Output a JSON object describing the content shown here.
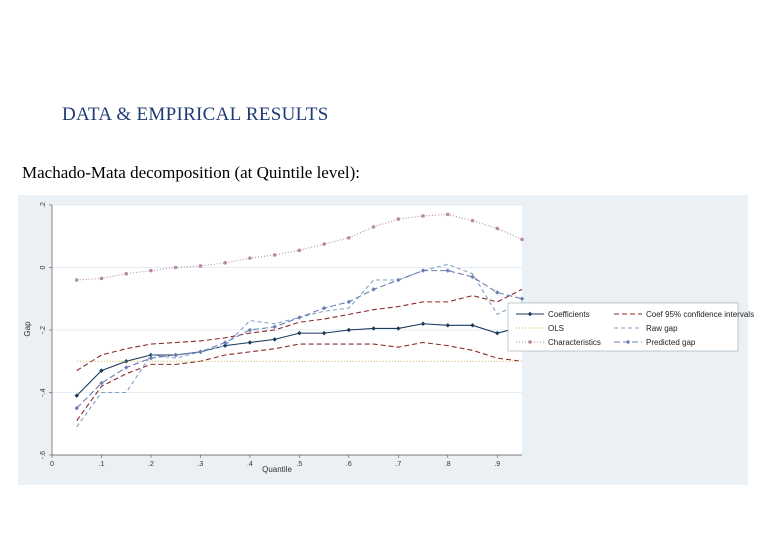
{
  "slide": {
    "heading": "DATA & EMPIRICAL RESULTS",
    "subheading": "Machado-Mata decomposition (at Quintile level):"
  },
  "chart_data": {
    "type": "line",
    "xlabel": "Quantile",
    "ylabel": "Gap",
    "xlim": [
      0,
      0.95
    ],
    "ylim": [
      -0.6,
      0.2
    ],
    "x_ticks": [
      0,
      0.1,
      0.2,
      0.3,
      0.4,
      0.5,
      0.6,
      0.7,
      0.8,
      0.9
    ],
    "x_tick_labels": [
      "0",
      ".1",
      ".2",
      ".3",
      ".4",
      ".5",
      ".6",
      ".7",
      ".8",
      ".9"
    ],
    "y_ticks": [
      -0.6,
      -0.4,
      -0.2,
      0,
      0.2
    ],
    "y_tick_labels": [
      "-.6",
      "-.4",
      "-.2",
      "0",
      ".2"
    ],
    "grid": "horizontal",
    "legend_position": "right",
    "x": [
      0.05,
      0.1,
      0.15,
      0.2,
      0.25,
      0.3,
      0.35,
      0.4,
      0.45,
      0.5,
      0.55,
      0.6,
      0.65,
      0.7,
      0.75,
      0.8,
      0.85,
      0.9,
      0.95
    ],
    "series": [
      {
        "name": "Coefficients",
        "color": "#1a3a5c",
        "dash": "",
        "marker": "diamond",
        "values": [
          -0.41,
          -0.33,
          -0.3,
          -0.28,
          -0.28,
          -0.27,
          -0.25,
          -0.24,
          -0.23,
          -0.21,
          -0.21,
          -0.2,
          -0.195,
          -0.195,
          -0.18,
          -0.185,
          -0.185,
          -0.21,
          -0.19
        ]
      },
      {
        "name": "Coef 95% confidence intervals",
        "color": "#8b2a2a",
        "dash": "5,3",
        "marker": "none",
        "values": [
          -0.33,
          -0.28,
          -0.26,
          -0.245,
          -0.24,
          -0.235,
          -0.225,
          -0.21,
          -0.2,
          -0.175,
          -0.165,
          -0.15,
          -0.135,
          -0.125,
          -0.11,
          -0.11,
          -0.09,
          -0.11,
          -0.07
        ]
      },
      {
        "name": "Coef 95% confidence intervals",
        "color": "#8b2a2a",
        "dash": "5,3",
        "marker": "none",
        "values": [
          -0.49,
          -0.38,
          -0.34,
          -0.31,
          -0.31,
          -0.3,
          -0.28,
          -0.27,
          -0.26,
          -0.245,
          -0.245,
          -0.245,
          -0.245,
          -0.255,
          -0.24,
          -0.25,
          -0.265,
          -0.29,
          -0.3
        ]
      },
      {
        "name": "OLS",
        "color": "#c9b04a",
        "dash": "1,2",
        "marker": "none",
        "values": [
          -0.3,
          -0.3,
          -0.3,
          -0.3,
          -0.3,
          -0.3,
          -0.3,
          -0.3,
          -0.3,
          -0.3,
          -0.3,
          -0.3,
          -0.3,
          -0.3,
          -0.3,
          -0.3,
          -0.3,
          -0.3,
          -0.3
        ]
      },
      {
        "name": "Raw gap",
        "color": "#7ea0c8",
        "dash": "4,3",
        "marker": "none",
        "values": [
          -0.51,
          -0.4,
          -0.4,
          -0.28,
          -0.29,
          -0.27,
          -0.25,
          -0.17,
          -0.18,
          -0.16,
          -0.14,
          -0.13,
          -0.04,
          -0.04,
          -0.01,
          0.01,
          -0.02,
          -0.15,
          -0.11
        ]
      },
      {
        "name": "Characteristics",
        "color": "#b58aa8",
        "dash": "1,2",
        "marker": "circle",
        "values": [
          -0.04,
          -0.035,
          -0.02,
          -0.01,
          0.0,
          0.005,
          0.015,
          0.03,
          0.04,
          0.055,
          0.075,
          0.095,
          0.13,
          0.155,
          0.165,
          0.17,
          0.15,
          0.125,
          0.09
        ]
      },
      {
        "name": "Predicted gap",
        "color": "#6a7fb0",
        "dash": "6,3",
        "marker": "diamond",
        "values": [
          -0.45,
          -0.37,
          -0.32,
          -0.29,
          -0.28,
          -0.27,
          -0.24,
          -0.2,
          -0.19,
          -0.16,
          -0.13,
          -0.11,
          -0.07,
          -0.04,
          -0.01,
          -0.01,
          -0.03,
          -0.08,
          -0.1
        ]
      }
    ],
    "legend": [
      "Coefficients",
      "Coef 95% confidence intervals",
      "OLS",
      "Raw gap",
      "Characteristics",
      "Predicted gap"
    ]
  }
}
